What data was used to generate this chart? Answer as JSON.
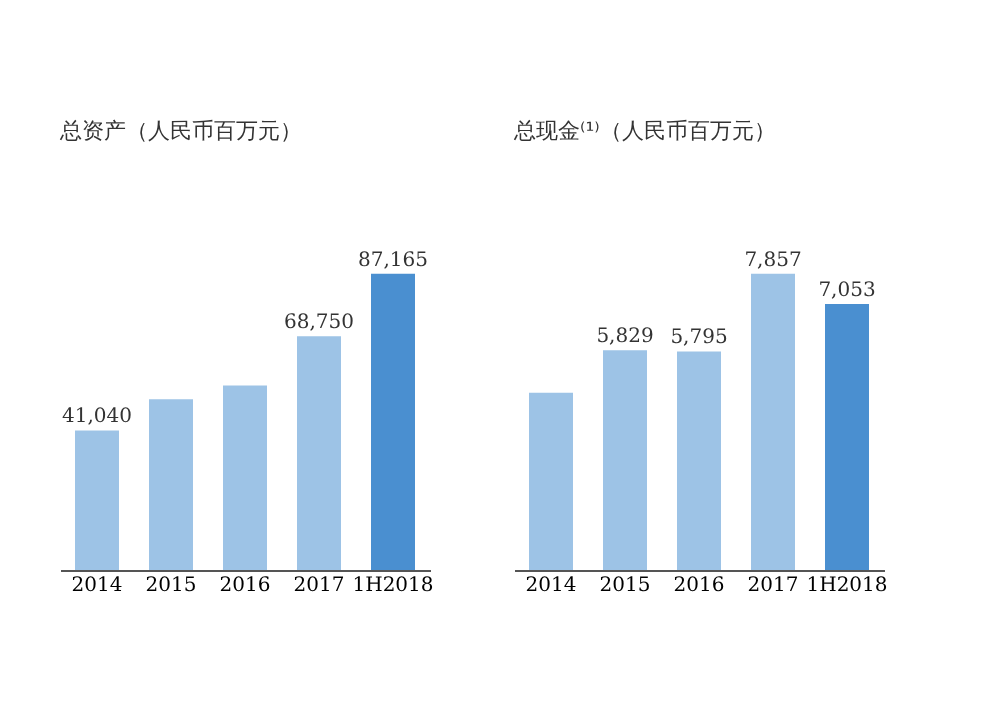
{
  "chart_data": [
    {
      "type": "bar",
      "title": "总资产（人民币百万元）",
      "categories": [
        "2014",
        "2015",
        "2016",
        "2017",
        "1H2018"
      ],
      "values": [
        41040,
        50200,
        54300,
        68750,
        87165
      ],
      "colors": [
        "#9dc3e6",
        "#9dc3e6",
        "#9dc3e6",
        "#9dc3e6",
        "#4a8fd0"
      ],
      "value_labels": [
        "41,040",
        null,
        null,
        "68,750",
        "87,165"
      ]
    },
    {
      "type": "bar",
      "title": "总现金⁽¹⁾（人民币百万元）",
      "categories": [
        "2014",
        "2015",
        "2016",
        "2017",
        "1H2018"
      ],
      "values": [
        4700,
        5829,
        5795,
        7857,
        7053
      ],
      "colors": [
        "#9dc3e6",
        "#9dc3e6",
        "#9dc3e6",
        "#9dc3e6",
        "#4a8fd0"
      ],
      "value_labels": [
        null,
        "5,829",
        "5,795",
        "7,857",
        "7,053"
      ]
    }
  ]
}
